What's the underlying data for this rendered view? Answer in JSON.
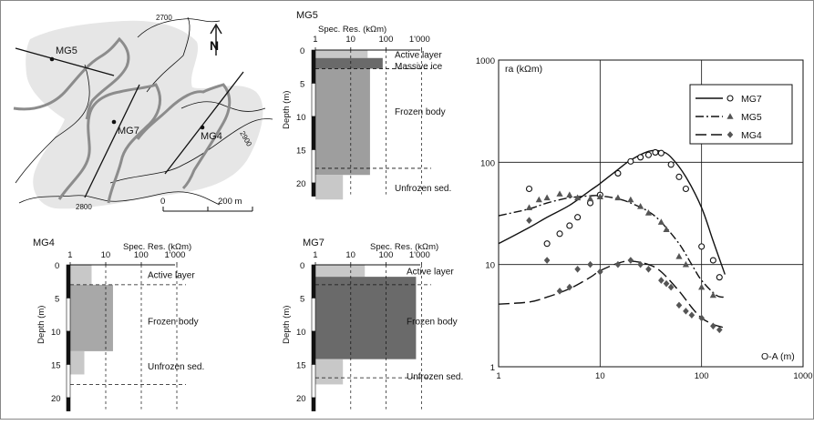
{
  "map": {
    "labels": {
      "mg5": "MG5",
      "mg7": "MG7",
      "mg4": "MG4"
    },
    "contours": {
      "c2700": "2700",
      "c2800": "2800",
      "c2900": "2900"
    },
    "north": "N",
    "scale": {
      "start": "0",
      "end": "200 m"
    }
  },
  "panels": [
    {
      "name": "MG5",
      "depth_ticks": [
        0,
        5,
        10,
        15,
        20
      ],
      "res_ticks": [
        "1",
        "10",
        "100",
        "1'000"
      ],
      "layers": [
        {
          "top": 0,
          "bottom": 1.2,
          "resistivity": 30,
          "color": "#c8c8c8"
        },
        {
          "top": 1.2,
          "bottom": 2.8,
          "resistivity": 80,
          "color": "#6a6a6a"
        },
        {
          "top": 2.8,
          "bottom": 18.8,
          "resistivity": 35,
          "color": "#9e9e9e"
        },
        {
          "top": 18.8,
          "bottom": 22.5,
          "resistivity": 6,
          "color": "#c8c8c8"
        }
      ],
      "boundaries": [
        2.8,
        17.8
      ],
      "layer_labels": [
        {
          "text": "Active layer",
          "depth": 0.2
        },
        {
          "text": "Massive ice",
          "depth": 1.9
        },
        {
          "text": "Frozen body",
          "depth": 8.8
        },
        {
          "text": "Unfrozen sed.",
          "depth": 20.3
        }
      ],
      "axis_title": "Spec. Res. (kΩm)",
      "depth_title": "Depth (m)"
    },
    {
      "name": "MG4",
      "depth_ticks": [
        0,
        5,
        10,
        15,
        20
      ],
      "res_ticks": [
        "1",
        "10",
        "100",
        "1'000"
      ],
      "layers": [
        {
          "top": 0,
          "bottom": 3.0,
          "resistivity": 4,
          "color": "#c8c8c8"
        },
        {
          "top": 3.0,
          "bottom": 13.0,
          "resistivity": 16,
          "color": "#a8a8a8"
        },
        {
          "top": 13.0,
          "bottom": 16.5,
          "resistivity": 2.5,
          "color": "#c8c8c8"
        }
      ],
      "boundaries": [
        3.0,
        18.0
      ],
      "layer_labels": [
        {
          "text": "Active layer",
          "depth": 1.0
        },
        {
          "text": "Frozen body",
          "depth": 8.0
        },
        {
          "text": "Unfrozen sed.",
          "depth": 14.8
        }
      ],
      "axis_title": "Spec. Res. (kΩm)",
      "depth_title": "Depth (m)"
    },
    {
      "name": "MG7",
      "depth_ticks": [
        0,
        5,
        10,
        15,
        20
      ],
      "res_ticks": [
        "1",
        "10",
        "100",
        "1'000"
      ],
      "layers": [
        {
          "top": 0,
          "bottom": 1.8,
          "resistivity": 25,
          "color": "#c8c8c8"
        },
        {
          "top": 1.8,
          "bottom": 14.2,
          "resistivity": 700,
          "color": "#6a6a6a"
        },
        {
          "top": 14.2,
          "bottom": 18.0,
          "resistivity": 6,
          "color": "#c8c8c8"
        }
      ],
      "boundaries": [
        3.0,
        17.0
      ],
      "layer_labels": [
        {
          "text": "Active layer",
          "depth": 0.5
        },
        {
          "text": "Frozen body",
          "depth": 8.0
        },
        {
          "text": "Unfrozen sed.",
          "depth": 16.3
        }
      ],
      "axis_title": "Spec. Res. (kΩm)",
      "depth_title": "Depth (m)"
    }
  ],
  "chart_data": [
    {
      "type": "table",
      "ref": "MG5 layered model"
    },
    {
      "type": "table",
      "ref": "MG4 layered model"
    },
    {
      "type": "scatter",
      "xscale": "log",
      "yscale": "log",
      "xlim": [
        1,
        1000
      ],
      "ylim": [
        1,
        1000
      ],
      "xticks": [
        "1",
        "10",
        "100",
        "1000"
      ],
      "yticks": [
        "1",
        "10",
        "100",
        "1000"
      ],
      "xlabel": "O-A (m)",
      "ylabel": "ra (kΩm)",
      "grid": true,
      "legend": "top-right",
      "series": [
        {
          "name": "MG7",
          "marker": "circle",
          "line": "solid",
          "points": [
            [
              2,
              55
            ],
            [
              3,
              16
            ],
            [
              4,
              20
            ],
            [
              5,
              24
            ],
            [
              6,
              29
            ],
            [
              8,
              40
            ],
            [
              10,
              48
            ],
            [
              15,
              78
            ],
            [
              20,
              102
            ],
            [
              25,
              112
            ],
            [
              30,
              118
            ],
            [
              35,
              125
            ],
            [
              40,
              123
            ],
            [
              50,
              95
            ],
            [
              60,
              72
            ],
            [
              70,
              55
            ],
            [
              100,
              15
            ],
            [
              130,
              11
            ],
            [
              150,
              7.5
            ]
          ],
          "curve": [
            [
              1,
              16
            ],
            [
              2,
              23
            ],
            [
              3,
              29
            ],
            [
              5,
              38
            ],
            [
              8,
              53
            ],
            [
              10,
              62
            ],
            [
              15,
              85
            ],
            [
              20,
              105
            ],
            [
              30,
              128
            ],
            [
              40,
              128
            ],
            [
              50,
              112
            ],
            [
              70,
              72
            ],
            [
              100,
              36
            ],
            [
              130,
              17
            ],
            [
              170,
              8
            ]
          ]
        },
        {
          "name": "MG5",
          "marker": "triangle",
          "line": "dash-dot",
          "points": [
            [
              2,
              36
            ],
            [
              2.5,
              43
            ],
            [
              3,
              45
            ],
            [
              4,
              49
            ],
            [
              5,
              48
            ],
            [
              6,
              45
            ],
            [
              8,
              44
            ],
            [
              10,
              46
            ],
            [
              15,
              45
            ],
            [
              20,
              43
            ],
            [
              25,
              37
            ],
            [
              30,
              32
            ],
            [
              40,
              26
            ],
            [
              45,
              22
            ],
            [
              60,
              12
            ],
            [
              70,
              10
            ],
            [
              100,
              6
            ],
            [
              130,
              5
            ]
          ],
          "curve": [
            [
              1,
              30
            ],
            [
              2,
              35
            ],
            [
              3,
              40
            ],
            [
              5,
              45
            ],
            [
              8,
              47
            ],
            [
              10,
              47
            ],
            [
              15,
              44
            ],
            [
              20,
              40
            ],
            [
              30,
              33
            ],
            [
              40,
              26
            ],
            [
              60,
              16
            ],
            [
              80,
              10
            ],
            [
              100,
              7
            ],
            [
              140,
              5
            ],
            [
              170,
              4.8
            ]
          ]
        },
        {
          "name": "MG4",
          "marker": "diamond",
          "line": "long-dash",
          "points": [
            [
              2,
              27
            ],
            [
              3,
              11
            ],
            [
              4,
              5.5
            ],
            [
              5,
              6
            ],
            [
              6,
              9
            ],
            [
              8,
              10
            ],
            [
              10,
              8.5
            ],
            [
              15,
              10
            ],
            [
              20,
              11
            ],
            [
              25,
              10
            ],
            [
              30,
              9
            ],
            [
              40,
              7
            ],
            [
              45,
              6.5
            ],
            [
              50,
              6
            ],
            [
              60,
              4
            ],
            [
              70,
              3.5
            ],
            [
              80,
              3.2
            ],
            [
              100,
              3
            ],
            [
              130,
              2.5
            ],
            [
              150,
              2.3
            ]
          ],
          "curve": [
            [
              1,
              4.1
            ],
            [
              2,
              4.3
            ],
            [
              3,
              4.8
            ],
            [
              5,
              5.8
            ],
            [
              8,
              7.5
            ],
            [
              10,
              8.7
            ],
            [
              15,
              10.3
            ],
            [
              20,
              10.8
            ],
            [
              30,
              10
            ],
            [
              40,
              8.5
            ],
            [
              60,
              5.5
            ],
            [
              80,
              3.8
            ],
            [
              100,
              3
            ],
            [
              130,
              2.6
            ],
            [
              170,
              2.4
            ]
          ]
        }
      ]
    }
  ]
}
